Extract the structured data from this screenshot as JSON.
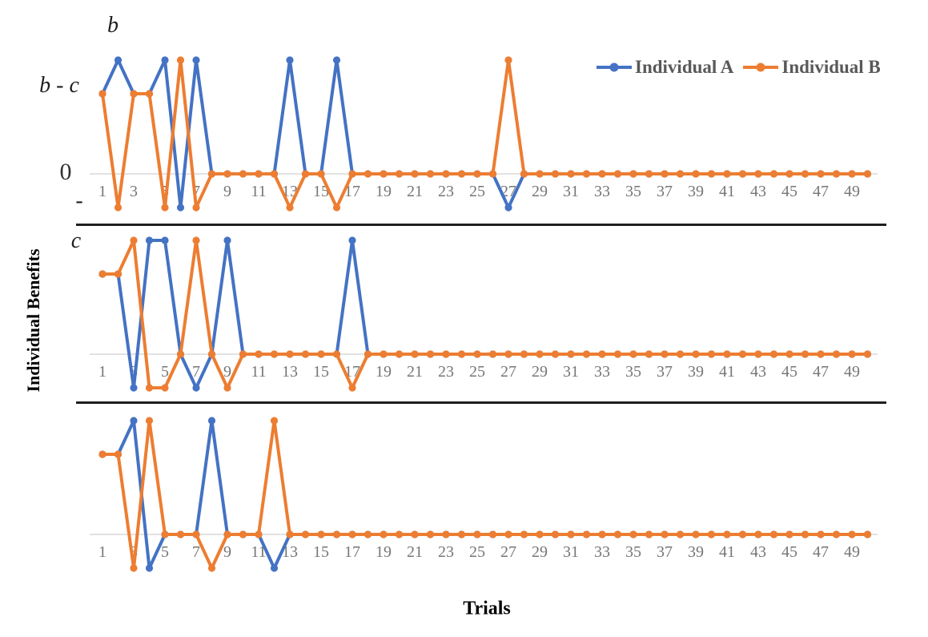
{
  "figure": {
    "y_axis_title": "Individual Benefits",
    "x_axis_title": "Trials",
    "axis_labels": {
      "b": "b",
      "b_minus_c": "b - c",
      "zero": "0",
      "minus": "-",
      "c": "c"
    }
  },
  "chart_data": {
    "type": "line",
    "title": "",
    "xlabel": "Trials",
    "ylabel": "Individual Benefits",
    "x_range": [
      1,
      50
    ],
    "xticks": [
      1,
      3,
      5,
      7,
      9,
      11,
      13,
      15,
      17,
      19,
      21,
      23,
      25,
      27,
      29,
      31,
      33,
      35,
      37,
      39,
      41,
      43,
      45,
      47,
      49
    ],
    "ytick_labels": [
      "b",
      "b - c",
      "0",
      "-c"
    ],
    "y_levels": {
      "b": 1.42,
      "b-c": 1.0,
      "0": 0,
      "-c": -0.42
    },
    "grid": "zero-line-only",
    "legend_position": "top-right",
    "marker": "circle",
    "series_names": [
      "Individual A",
      "Individual B"
    ],
    "colors": {
      "Individual A": "#4472C4",
      "Individual B": "#ED7D31"
    },
    "panels": [
      {
        "name": "Panel 1",
        "series": [
          {
            "name": "Individual A",
            "values": [
              "b-c",
              "b",
              "b-c",
              "b-c",
              "b",
              "-c",
              "b",
              "0",
              "0",
              "0",
              "0",
              "0",
              "b",
              "0",
              "0",
              "b",
              "0",
              "0",
              "0",
              "0",
              "0",
              "0",
              "0",
              "0",
              "0",
              "0",
              "-c",
              "0",
              "0",
              "0",
              "0",
              "0",
              "0",
              "0",
              "0",
              "0",
              "0",
              "0",
              "0",
              "0",
              "0",
              "0",
              "0",
              "0",
              "0",
              "0",
              "0",
              "0",
              "0",
              "0"
            ]
          },
          {
            "name": "Individual B",
            "values": [
              "b-c",
              "-c",
              "b-c",
              "b-c",
              "-c",
              "b",
              "-c",
              "0",
              "0",
              "0",
              "0",
              "0",
              "-c",
              "0",
              "0",
              "-c",
              "0",
              "0",
              "0",
              "0",
              "0",
              "0",
              "0",
              "0",
              "0",
              "0",
              "b",
              "0",
              "0",
              "0",
              "0",
              "0",
              "0",
              "0",
              "0",
              "0",
              "0",
              "0",
              "0",
              "0",
              "0",
              "0",
              "0",
              "0",
              "0",
              "0",
              "0",
              "0",
              "0",
              "0"
            ]
          }
        ]
      },
      {
        "name": "Panel 2",
        "series": [
          {
            "name": "Individual A",
            "values": [
              "b-c",
              "b-c",
              "-c",
              "b",
              "b",
              "0",
              "-c",
              "0",
              "b",
              "0",
              "0",
              "0",
              "0",
              "0",
              "0",
              "0",
              "b",
              "0",
              "0",
              "0",
              "0",
              "0",
              "0",
              "0",
              "0",
              "0",
              "0",
              "0",
              "0",
              "0",
              "0",
              "0",
              "0",
              "0",
              "0",
              "0",
              "0",
              "0",
              "0",
              "0",
              "0",
              "0",
              "0",
              "0",
              "0",
              "0",
              "0",
              "0",
              "0",
              "0"
            ]
          },
          {
            "name": "Individual B",
            "values": [
              "b-c",
              "b-c",
              "b",
              "-c",
              "-c",
              "0",
              "b",
              "0",
              "-c",
              "0",
              "0",
              "0",
              "0",
              "0",
              "0",
              "0",
              "-c",
              "0",
              "0",
              "0",
              "0",
              "0",
              "0",
              "0",
              "0",
              "0",
              "0",
              "0",
              "0",
              "0",
              "0",
              "0",
              "0",
              "0",
              "0",
              "0",
              "0",
              "0",
              "0",
              "0",
              "0",
              "0",
              "0",
              "0",
              "0",
              "0",
              "0",
              "0",
              "0",
              "0"
            ]
          }
        ]
      },
      {
        "name": "Panel 3",
        "series": [
          {
            "name": "Individual A",
            "values": [
              "b-c",
              "b-c",
              "b",
              "-c",
              "0",
              "0",
              "0",
              "b",
              "0",
              "0",
              "0",
              "-c",
              "0",
              "0",
              "0",
              "0",
              "0",
              "0",
              "0",
              "0",
              "0",
              "0",
              "0",
              "0",
              "0",
              "0",
              "0",
              "0",
              "0",
              "0",
              "0",
              "0",
              "0",
              "0",
              "0",
              "0",
              "0",
              "0",
              "0",
              "0",
              "0",
              "0",
              "0",
              "0",
              "0",
              "0",
              "0",
              "0",
              "0",
              "0"
            ]
          },
          {
            "name": "Individual B",
            "values": [
              "b-c",
              "b-c",
              "-c",
              "b",
              "0",
              "0",
              "0",
              "-c",
              "0",
              "0",
              "0",
              "b",
              "0",
              "0",
              "0",
              "0",
              "0",
              "0",
              "0",
              "0",
              "0",
              "0",
              "0",
              "0",
              "0",
              "0",
              "0",
              "0",
              "0",
              "0",
              "0",
              "0",
              "0",
              "0",
              "0",
              "0",
              "0",
              "0",
              "0",
              "0",
              "0",
              "0",
              "0",
              "0",
              "0",
              "0",
              "0",
              "0",
              "0",
              "0"
            ]
          }
        ]
      }
    ]
  }
}
